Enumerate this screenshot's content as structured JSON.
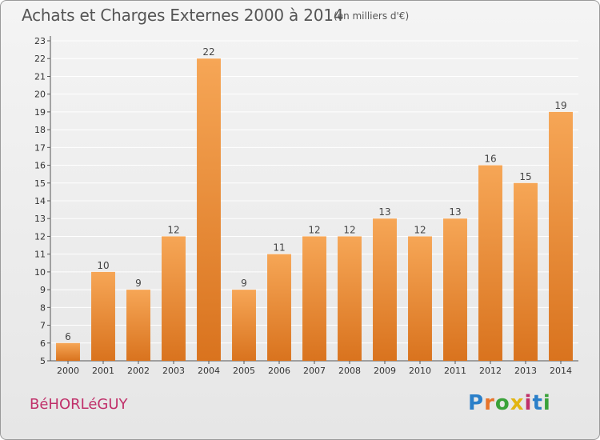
{
  "title": "Achats et Charges Externes 2000 à 2014",
  "subtitle": "(en milliers d'€)",
  "commune": "BéHORLéGUY",
  "logo": {
    "text": "Proxiti",
    "letter_colors": [
      "#2a7fc9",
      "#e8742a",
      "#3aa23a",
      "#e2b512",
      "#c0306a",
      "#2a7fc9",
      "#3aa23a"
    ]
  },
  "colors": {
    "bar_top": "#f6a656",
    "bar_bottom": "#d9731e",
    "axis": "#555555",
    "grid": "#ffffff",
    "commune": "#c0306a"
  },
  "chart_data": {
    "type": "bar",
    "title": "Achats et Charges Externes 2000 à 2014",
    "subtitle": "(en milliers d'€)",
    "xlabel": "",
    "ylabel": "",
    "ylim": [
      5,
      23
    ],
    "yticks": [
      5,
      6,
      7,
      8,
      9,
      10,
      11,
      12,
      13,
      14,
      15,
      16,
      17,
      18,
      19,
      20,
      21,
      22,
      23
    ],
    "grid": true,
    "categories": [
      "2000",
      "2001",
      "2002",
      "2003",
      "2004",
      "2005",
      "2006",
      "2007",
      "2008",
      "2009",
      "2010",
      "2011",
      "2012",
      "2013",
      "2014"
    ],
    "values": [
      6,
      10,
      9,
      12,
      22,
      9,
      11,
      12,
      12,
      13,
      12,
      13,
      16,
      15,
      19
    ]
  }
}
